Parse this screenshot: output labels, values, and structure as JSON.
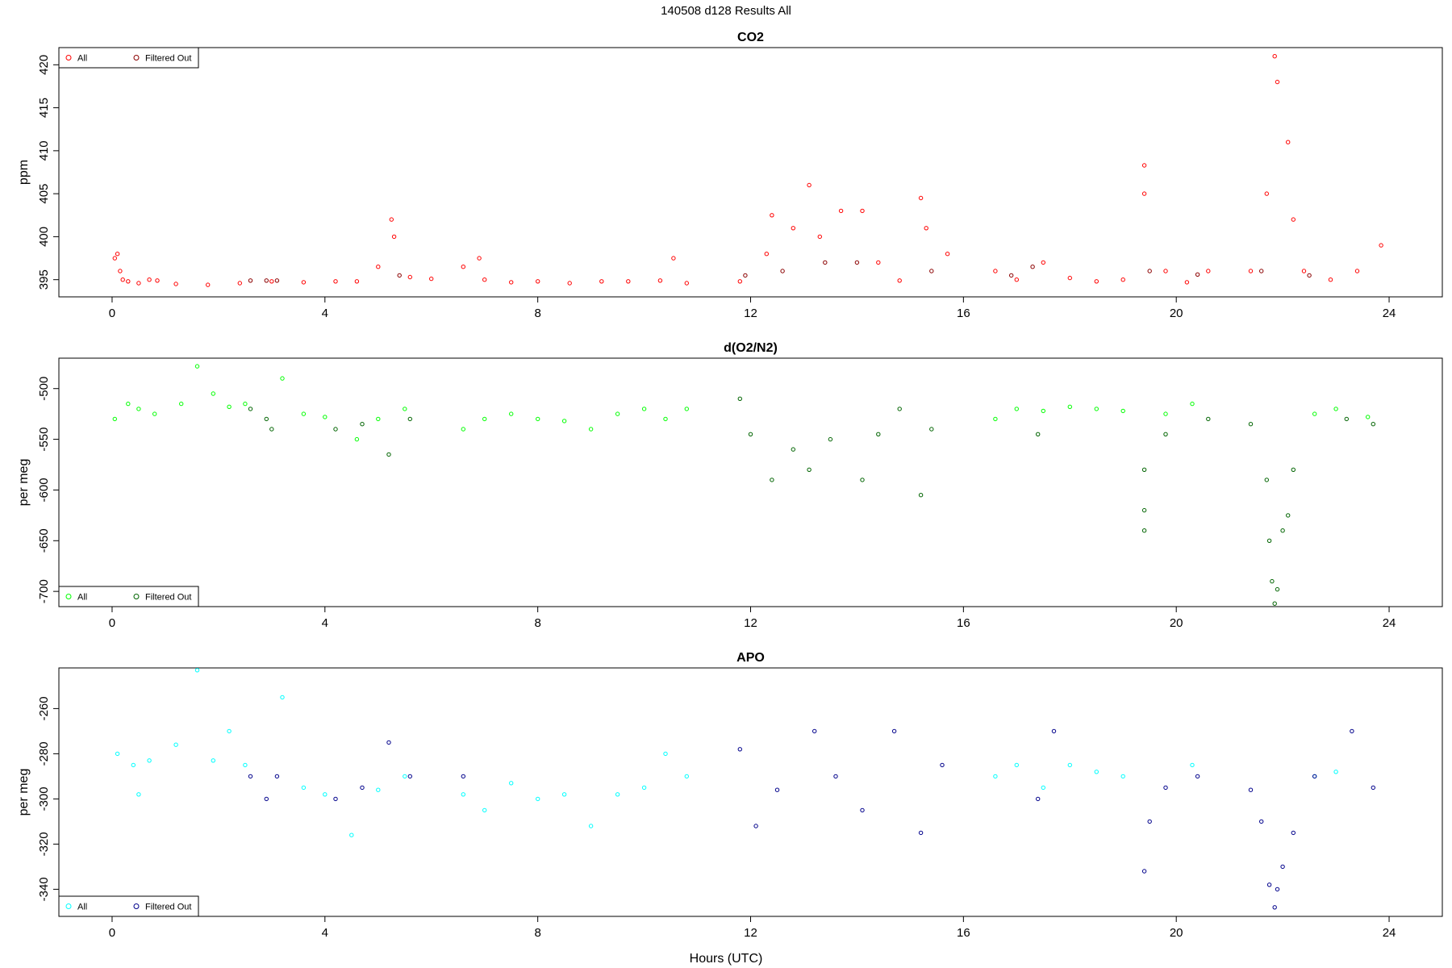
{
  "page_title": "140508   d128   Results All",
  "x_axis_label": "Hours (UTC)",
  "chart_data": [
    {
      "type": "scatter",
      "title": "CO2",
      "ylabel": "ppm",
      "xlim": [
        -1,
        25
      ],
      "ylim": [
        393,
        422
      ],
      "x_ticks": [
        0,
        4,
        8,
        12,
        16,
        20,
        24
      ],
      "y_ticks": [
        395,
        400,
        405,
        410,
        415,
        420
      ],
      "legend_position": "top-left",
      "series": [
        {
          "name": "All",
          "color": "#ff0000",
          "marker": "open-circle",
          "points": [
            [
              0.05,
              397.5
            ],
            [
              0.1,
              398
            ],
            [
              0.15,
              396
            ],
            [
              0.2,
              395
            ],
            [
              0.3,
              394.8
            ],
            [
              0.5,
              394.6
            ],
            [
              0.7,
              395
            ],
            [
              0.85,
              394.9
            ],
            [
              1.2,
              394.5
            ],
            [
              1.8,
              394.4
            ],
            [
              2.4,
              394.6
            ],
            [
              3.0,
              394.8
            ],
            [
              3.6,
              394.7
            ],
            [
              4.2,
              394.8
            ],
            [
              4.6,
              394.8
            ],
            [
              5.0,
              396.5
            ],
            [
              5.25,
              402
            ],
            [
              5.3,
              400
            ],
            [
              5.6,
              395.3
            ],
            [
              6.0,
              395.1
            ],
            [
              6.6,
              396.5
            ],
            [
              6.9,
              397.5
            ],
            [
              7.0,
              395
            ],
            [
              7.5,
              394.7
            ],
            [
              8.0,
              394.8
            ],
            [
              8.6,
              394.6
            ],
            [
              9.2,
              394.8
            ],
            [
              9.7,
              394.8
            ],
            [
              10.3,
              394.9
            ],
            [
              10.55,
              397.5
            ],
            [
              10.8,
              394.6
            ],
            [
              11.8,
              394.8
            ],
            [
              12.3,
              398
            ],
            [
              12.4,
              402.5
            ],
            [
              12.8,
              401
            ],
            [
              13.1,
              406
            ],
            [
              13.3,
              400
            ],
            [
              13.7,
              403
            ],
            [
              14.1,
              403
            ],
            [
              14.4,
              397
            ],
            [
              14.8,
              394.9
            ],
            [
              15.2,
              404.5
            ],
            [
              15.3,
              401
            ],
            [
              15.7,
              398
            ],
            [
              16.6,
              396
            ],
            [
              17.0,
              395
            ],
            [
              17.5,
              397
            ],
            [
              18.0,
              395.2
            ],
            [
              18.5,
              394.8
            ],
            [
              19.0,
              395
            ],
            [
              19.4,
              408.3
            ],
            [
              19.4,
              405
            ],
            [
              19.8,
              396
            ],
            [
              20.2,
              394.7
            ],
            [
              20.6,
              396
            ],
            [
              21.4,
              396
            ],
            [
              21.7,
              405
            ],
            [
              21.85,
              421
            ],
            [
              21.9,
              418
            ],
            [
              22.1,
              411
            ],
            [
              22.2,
              402
            ],
            [
              22.4,
              396
            ],
            [
              22.9,
              395
            ],
            [
              23.4,
              396
            ],
            [
              23.85,
              399
            ]
          ]
        },
        {
          "name": "Filtered Out",
          "color": "#8b0000",
          "marker": "open-circle",
          "points": [
            [
              2.6,
              394.9
            ],
            [
              2.9,
              394.9
            ],
            [
              3.1,
              394.9
            ],
            [
              5.4,
              395.5
            ],
            [
              11.9,
              395.5
            ],
            [
              12.6,
              396
            ],
            [
              13.4,
              397
            ],
            [
              14.0,
              397
            ],
            [
              15.4,
              396
            ],
            [
              16.9,
              395.5
            ],
            [
              17.3,
              396.5
            ],
            [
              19.5,
              396
            ],
            [
              20.4,
              395.6
            ],
            [
              21.6,
              396
            ],
            [
              22.5,
              395.5
            ]
          ]
        }
      ]
    },
    {
      "type": "scatter",
      "title": "d(O2/N2)",
      "ylabel": "per meg",
      "xlim": [
        -1,
        25
      ],
      "ylim": [
        -715,
        -470
      ],
      "x_ticks": [
        0,
        4,
        8,
        12,
        16,
        20,
        24
      ],
      "y_ticks": [
        -500,
        -550,
        -600,
        -650,
        -700
      ],
      "legend_position": "bottom-left",
      "series": [
        {
          "name": "All",
          "color": "#00ff00",
          "marker": "open-circle",
          "points": [
            [
              0.05,
              -530
            ],
            [
              0.3,
              -515
            ],
            [
              0.5,
              -520
            ],
            [
              0.8,
              -525
            ],
            [
              1.3,
              -515
            ],
            [
              1.6,
              -478
            ],
            [
              1.9,
              -505
            ],
            [
              2.2,
              -518
            ],
            [
              2.5,
              -515
            ],
            [
              3.2,
              -490
            ],
            [
              3.6,
              -525
            ],
            [
              4.0,
              -528
            ],
            [
              4.6,
              -550
            ],
            [
              5.0,
              -530
            ],
            [
              5.5,
              -520
            ],
            [
              6.6,
              -540
            ],
            [
              7.0,
              -530
            ],
            [
              7.5,
              -525
            ],
            [
              8.0,
              -530
            ],
            [
              8.5,
              -532
            ],
            [
              9.0,
              -540
            ],
            [
              9.5,
              -525
            ],
            [
              10.0,
              -520
            ],
            [
              10.4,
              -530
            ],
            [
              10.8,
              -520
            ],
            [
              16.6,
              -530
            ],
            [
              17.0,
              -520
            ],
            [
              17.5,
              -522
            ],
            [
              18.0,
              -518
            ],
            [
              18.5,
              -520
            ],
            [
              19.0,
              -522
            ],
            [
              19.8,
              -525
            ],
            [
              20.3,
              -515
            ],
            [
              22.6,
              -525
            ],
            [
              23.0,
              -520
            ],
            [
              23.6,
              -528
            ]
          ]
        },
        {
          "name": "Filtered Out",
          "color": "#006400",
          "marker": "open-circle",
          "points": [
            [
              2.6,
              -520
            ],
            [
              2.9,
              -530
            ],
            [
              3.0,
              -540
            ],
            [
              4.2,
              -540
            ],
            [
              4.7,
              -535
            ],
            [
              5.2,
              -565
            ],
            [
              5.6,
              -530
            ],
            [
              11.8,
              -510
            ],
            [
              12.0,
              -545
            ],
            [
              12.4,
              -590
            ],
            [
              12.8,
              -560
            ],
            [
              13.1,
              -580
            ],
            [
              13.5,
              -550
            ],
            [
              14.1,
              -590
            ],
            [
              14.4,
              -545
            ],
            [
              14.8,
              -520
            ],
            [
              15.2,
              -605
            ],
            [
              15.4,
              -540
            ],
            [
              17.4,
              -545
            ],
            [
              19.4,
              -580
            ],
            [
              19.4,
              -620
            ],
            [
              19.4,
              -640
            ],
            [
              19.8,
              -545
            ],
            [
              20.6,
              -530
            ],
            [
              21.4,
              -535
            ],
            [
              21.7,
              -590
            ],
            [
              21.75,
              -650
            ],
            [
              21.8,
              -690
            ],
            [
              21.85,
              -712
            ],
            [
              21.9,
              -698
            ],
            [
              22.0,
              -640
            ],
            [
              22.1,
              -625
            ],
            [
              22.2,
              -580
            ],
            [
              23.2,
              -530
            ],
            [
              23.7,
              -535
            ]
          ]
        }
      ]
    },
    {
      "type": "scatter",
      "title": "APO",
      "ylabel": "per meg",
      "xlim": [
        -1,
        25
      ],
      "ylim": [
        -352,
        -242
      ],
      "x_ticks": [
        0,
        4,
        8,
        12,
        16,
        20,
        24
      ],
      "y_ticks": [
        -260,
        -280,
        -300,
        -320,
        -340
      ],
      "legend_position": "bottom-left",
      "series": [
        {
          "name": "All",
          "color": "#00ffff",
          "marker": "open-circle",
          "points": [
            [
              0.1,
              -280
            ],
            [
              0.4,
              -285
            ],
            [
              0.5,
              -298
            ],
            [
              0.7,
              -283
            ],
            [
              1.2,
              -276
            ],
            [
              1.6,
              -243
            ],
            [
              1.9,
              -283
            ],
            [
              2.2,
              -270
            ],
            [
              2.5,
              -285
            ],
            [
              3.2,
              -255
            ],
            [
              3.6,
              -295
            ],
            [
              4.0,
              -298
            ],
            [
              4.5,
              -316
            ],
            [
              5.0,
              -296
            ],
            [
              5.5,
              -290
            ],
            [
              6.6,
              -298
            ],
            [
              7.0,
              -305
            ],
            [
              7.5,
              -293
            ],
            [
              8.0,
              -300
            ],
            [
              8.5,
              -298
            ],
            [
              9.0,
              -312
            ],
            [
              9.5,
              -298
            ],
            [
              10.0,
              -295
            ],
            [
              10.4,
              -280
            ],
            [
              10.8,
              -290
            ],
            [
              16.6,
              -290
            ],
            [
              17.0,
              -285
            ],
            [
              17.5,
              -295
            ],
            [
              18.0,
              -285
            ],
            [
              18.5,
              -288
            ],
            [
              19.0,
              -290
            ],
            [
              20.3,
              -285
            ],
            [
              22.6,
              -290
            ],
            [
              23.0,
              -288
            ]
          ]
        },
        {
          "name": "Filtered Out",
          "color": "#00008b",
          "marker": "open-circle",
          "points": [
            [
              2.6,
              -290
            ],
            [
              2.9,
              -300
            ],
            [
              3.1,
              -290
            ],
            [
              4.2,
              -300
            ],
            [
              4.7,
              -295
            ],
            [
              5.2,
              -275
            ],
            [
              5.6,
              -290
            ],
            [
              6.6,
              -290
            ],
            [
              11.8,
              -278
            ],
            [
              12.1,
              -312
            ],
            [
              12.5,
              -296
            ],
            [
              13.2,
              -270
            ],
            [
              13.6,
              -290
            ],
            [
              14.1,
              -305
            ],
            [
              14.7,
              -270
            ],
            [
              15.2,
              -315
            ],
            [
              15.6,
              -285
            ],
            [
              17.4,
              -300
            ],
            [
              17.7,
              -270
            ],
            [
              19.4,
              -332
            ],
            [
              19.5,
              -310
            ],
            [
              19.8,
              -295
            ],
            [
              20.4,
              -290
            ],
            [
              21.4,
              -296
            ],
            [
              21.6,
              -310
            ],
            [
              21.75,
              -338
            ],
            [
              21.85,
              -348
            ],
            [
              21.9,
              -340
            ],
            [
              22.0,
              -330
            ],
            [
              22.2,
              -315
            ],
            [
              22.6,
              -290
            ],
            [
              23.3,
              -270
            ],
            [
              23.7,
              -295
            ]
          ]
        }
      ]
    }
  ]
}
